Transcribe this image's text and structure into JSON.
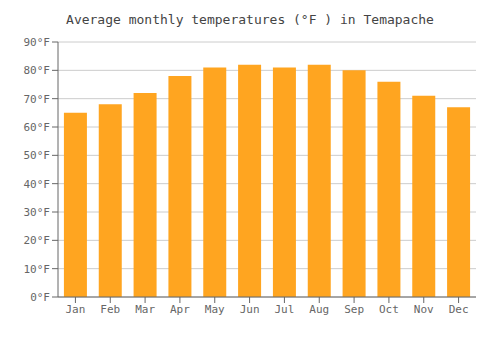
{
  "chart_data": {
    "type": "bar",
    "title": "Average monthly temperatures (°F ) in Temapache",
    "categories": [
      "Jan",
      "Feb",
      "Mar",
      "Apr",
      "May",
      "Jun",
      "Jul",
      "Aug",
      "Sep",
      "Oct",
      "Nov",
      "Dec"
    ],
    "values": [
      65,
      68,
      72,
      78,
      81,
      82,
      81,
      82,
      80,
      76,
      71,
      67
    ],
    "color": "#FFA520",
    "ylim": [
      0,
      90
    ],
    "yticks": [
      {
        "value": 0,
        "label": "0°F"
      },
      {
        "value": 10,
        "label": "10°F"
      },
      {
        "value": 20,
        "label": "20°F"
      },
      {
        "value": 30,
        "label": "30°F"
      },
      {
        "value": 40,
        "label": "40°F"
      },
      {
        "value": 50,
        "label": "50°F"
      },
      {
        "value": 60,
        "label": "60°F"
      },
      {
        "value": 70,
        "label": "70°F"
      },
      {
        "value": 80,
        "label": "80°F"
      },
      {
        "value": 90,
        "label": "90°F"
      }
    ],
    "grid": true
  }
}
